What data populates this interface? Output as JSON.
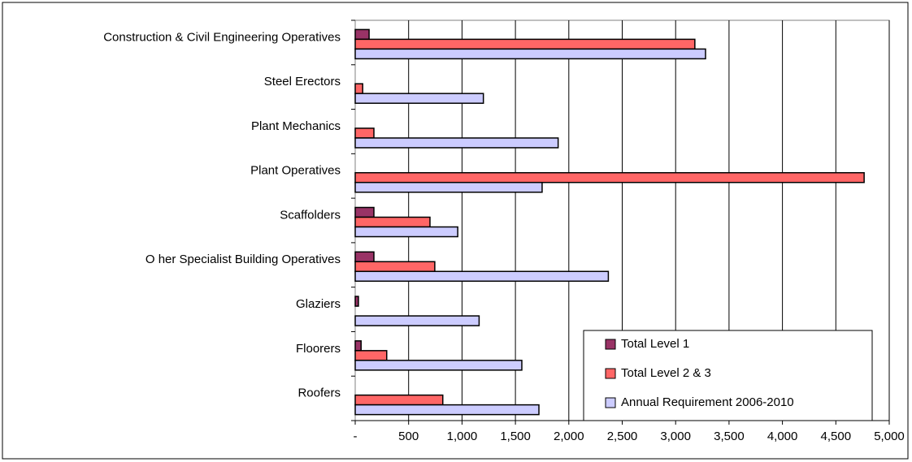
{
  "chart_data": {
    "type": "bar",
    "orientation": "horizontal",
    "categories": [
      "Construction & Civil Engineering Operatives",
      "Steel Erectors",
      "Plant Mechanics",
      "Plant Operatives",
      "Scaffolders",
      "O her Specialist Building Operatives",
      "Glaziers",
      "Floorers",
      "Roofers"
    ],
    "series": [
      {
        "name": "Total Level 1",
        "color": "#993366",
        "values": [
          130,
          0,
          0,
          0,
          175,
          175,
          30,
          55,
          0
        ]
      },
      {
        "name": "Total Level 2 & 3",
        "color": "#ff6666",
        "values": [
          3180,
          70,
          175,
          4765,
          700,
          745,
          0,
          295,
          820
        ]
      },
      {
        "name": "Annual Requirement 2006-2010",
        "color": "#ccccff",
        "values": [
          3280,
          1200,
          1900,
          1750,
          960,
          2370,
          1160,
          1560,
          1720
        ]
      }
    ],
    "xlim": [
      0,
      5000
    ],
    "xticks": [
      {
        "value": 0,
        "label": "-"
      },
      500,
      {
        "value": 1000,
        "label": "1,000"
      },
      {
        "value": 1500,
        "label": "1,500"
      },
      {
        "value": 2000,
        "label": "2,000"
      },
      {
        "value": 2500,
        "label": "2,500"
      },
      {
        "value": 3000,
        "label": "3,000"
      },
      {
        "value": 3500,
        "label": "3,500"
      },
      {
        "value": 4000,
        "label": "4,000"
      },
      {
        "value": 4500,
        "label": "4,500"
      },
      {
        "value": 5000,
        "label": "5,000"
      }
    ],
    "grid": true,
    "legend": "bottom-right"
  }
}
